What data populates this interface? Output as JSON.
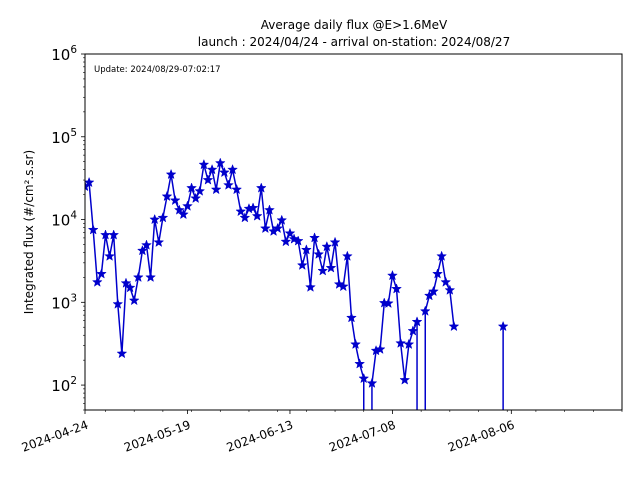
{
  "chart_data": {
    "type": "line",
    "title_lines": [
      "Average daily flux @E>1.6MeV",
      "launch : 2024/04/24 - arrival on-station: 2024/08/27"
    ],
    "annotation": "Update: 2024/08/29-07:02:17",
    "ylabel": "Integrated flux (#/cm².s.sr)",
    "xlabel": "",
    "yscale": "log",
    "ylim": [
      50,
      1000000
    ],
    "xlim": [
      "2024-04-24",
      "2024-09-02"
    ],
    "x_major_ticks": [
      "2024-04-24",
      "2024-05-19",
      "2024-06-13",
      "2024-07-08",
      "2024-08-06"
    ],
    "y_major_ticks": [
      {
        "value": 100,
        "base": "10",
        "exp": "2"
      },
      {
        "value": 1000,
        "base": "10",
        "exp": "3"
      },
      {
        "value": 10000,
        "base": "10",
        "exp": "4"
      },
      {
        "value": 100000,
        "base": "10",
        "exp": "5"
      },
      {
        "value": 1000000,
        "base": "10",
        "exp": "6"
      }
    ],
    "grid": false,
    "line_color": "#0000cc",
    "marker": "star",
    "series": [
      {
        "x": [
          "2024-04-24",
          "2024-04-25",
          "2024-04-26",
          "2024-04-27",
          "2024-04-28",
          "2024-04-29",
          "2024-04-30",
          "2024-05-01",
          "2024-05-02",
          "2024-05-03",
          "2024-05-04",
          "2024-05-05",
          "2024-05-06",
          "2024-05-07",
          "2024-05-08",
          "2024-05-09",
          "2024-05-10",
          "2024-05-11",
          "2024-05-12",
          "2024-05-13",
          "2024-05-14",
          "2024-05-15",
          "2024-05-16",
          "2024-05-17",
          "2024-05-18",
          "2024-05-19",
          "2024-05-20",
          "2024-05-21",
          "2024-05-22",
          "2024-05-23",
          "2024-05-24",
          "2024-05-25",
          "2024-05-26",
          "2024-05-27",
          "2024-05-28",
          "2024-05-29",
          "2024-05-30",
          "2024-05-31",
          "2024-06-01",
          "2024-06-02",
          "2024-06-03",
          "2024-06-04",
          "2024-06-05",
          "2024-06-06",
          "2024-06-07",
          "2024-06-08",
          "2024-06-09",
          "2024-06-10",
          "2024-06-11",
          "2024-06-12",
          "2024-06-13",
          "2024-06-14",
          "2024-06-15",
          "2024-06-16",
          "2024-06-17",
          "2024-06-18",
          "2024-06-19",
          "2024-06-20",
          "2024-06-21",
          "2024-06-22",
          "2024-06-23",
          "2024-06-24",
          "2024-06-25",
          "2024-06-26",
          "2024-06-27",
          "2024-06-28",
          "2024-06-29",
          "2024-06-30",
          "2024-07-01",
          "2024-07-02",
          "2024-07-03",
          "2024-07-04",
          "2024-07-05",
          "2024-07-06",
          "2024-07-07",
          "2024-07-08",
          "2024-07-09",
          "2024-07-10",
          "2024-07-11",
          "2024-07-12",
          "2024-07-13",
          "2024-07-14",
          "2024-07-15",
          "2024-07-16",
          "2024-07-17",
          "2024-07-18",
          "2024-07-19",
          "2024-07-20",
          "2024-07-21",
          "2024-07-22",
          "2024-07-23"
        ],
        "y": [
          25000,
          28000,
          7500,
          1750,
          2200,
          6500,
          3600,
          6500,
          950,
          240,
          1700,
          1500,
          1050,
          2000,
          4200,
          4900,
          2000,
          10000,
          5300,
          10500,
          19000,
          35000,
          17000,
          13000,
          11500,
          14500,
          24000,
          18000,
          22000,
          46000,
          30000,
          40000,
          23000,
          48000,
          37000,
          26000,
          40000,
          23000,
          12500,
          10500,
          13500,
          13800,
          11000,
          24000,
          7800,
          13000,
          7200,
          7800,
          9800,
          5400,
          6800,
          5800,
          5500,
          2800,
          4300,
          1520,
          6000,
          3800,
          2400,
          4700,
          2600,
          5300,
          1650,
          1550,
          3600,
          650,
          310,
          180,
          120,
          null,
          105,
          260,
          270,
          980,
          970,
          2100,
          1450,
          320,
          115,
          310,
          450,
          580,
          null,
          780,
          1200,
          1350,
          2200,
          3600,
          1750,
          1400,
          510
        ]
      },
      {
        "x": [
          "2024-08-04"
        ],
        "y": [
          510
        ]
      }
    ]
  }
}
